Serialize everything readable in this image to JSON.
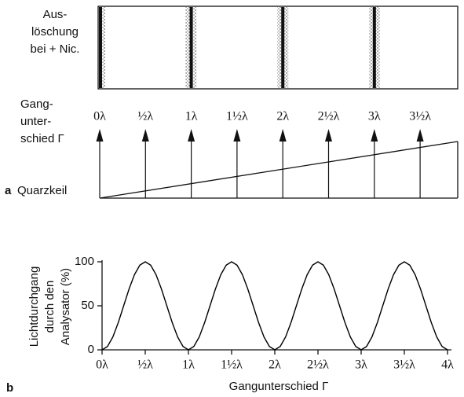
{
  "panel_a": {
    "extinction_label": [
      "Aus-",
      "löschung",
      "bei + Nic."
    ],
    "path_label": [
      "Gang-",
      "unter-",
      "schied Γ"
    ],
    "ticks": [
      "0λ",
      "½λ",
      "1λ",
      "1½λ",
      "2λ",
      "2½λ",
      "3λ",
      "3½λ"
    ],
    "panel_letter": "a",
    "wedge_label": "Quarzkeil"
  },
  "chart_data": {
    "type": "line",
    "panel_letter": "b",
    "ylabel": [
      "Lichtdurchgang",
      "durch den",
      "Analysator (%)"
    ],
    "xlabel": "Gangunterschied Γ",
    "xlim": [
      0,
      4
    ],
    "ylim": [
      0,
      100
    ],
    "xticks": [
      {
        "value": 0,
        "label": "0λ"
      },
      {
        "value": 0.5,
        "label": "½λ"
      },
      {
        "value": 1,
        "label": "1λ"
      },
      {
        "value": 1.5,
        "label": "1½λ"
      },
      {
        "value": 2,
        "label": "2λ"
      },
      {
        "value": 2.5,
        "label": "2½λ"
      },
      {
        "value": 3,
        "label": "3λ"
      },
      {
        "value": 3.5,
        "label": "3½λ"
      },
      {
        "value": 4,
        "label": "4λ"
      }
    ],
    "yticks": [
      0,
      50,
      100
    ],
    "x": [
      0,
      0.0625,
      0.125,
      0.1875,
      0.25,
      0.3125,
      0.375,
      0.4375,
      0.5,
      0.5625,
      0.625,
      0.6875,
      0.75,
      0.8125,
      0.875,
      0.9375,
      1,
      1.0625,
      1.125,
      1.1875,
      1.25,
      1.3125,
      1.375,
      1.4375,
      1.5,
      1.5625,
      1.625,
      1.6875,
      1.75,
      1.8125,
      1.875,
      1.9375,
      2,
      2.0625,
      2.125,
      2.1875,
      2.25,
      2.3125,
      2.375,
      2.4375,
      2.5,
      2.5625,
      2.625,
      2.6875,
      2.75,
      2.8125,
      2.875,
      2.9375,
      3,
      3.0625,
      3.125,
      3.1875,
      3.25,
      3.3125,
      3.375,
      3.4375,
      3.5,
      3.5625,
      3.625,
      3.6875,
      3.75,
      3.8125,
      3.875,
      3.9375,
      4
    ],
    "series": [
      {
        "color": "#000000",
        "values": [
          0,
          3.8,
          14.6,
          30.9,
          50,
          69.1,
          85.4,
          96.2,
          100,
          96.2,
          85.4,
          69.1,
          50,
          30.9,
          14.6,
          3.8,
          0,
          3.8,
          14.6,
          30.9,
          50,
          69.1,
          85.4,
          96.2,
          100,
          96.2,
          85.4,
          69.1,
          50,
          30.9,
          14.6,
          3.8,
          0,
          3.8,
          14.6,
          30.9,
          50,
          69.1,
          85.4,
          96.2,
          100,
          96.2,
          85.4,
          69.1,
          50,
          30.9,
          14.6,
          3.8,
          0,
          3.8,
          14.6,
          30.9,
          50,
          69.1,
          85.4,
          96.2,
          100,
          96.2,
          85.4,
          69.1,
          50,
          30.9,
          14.6,
          3.8,
          0
        ]
      }
    ]
  }
}
